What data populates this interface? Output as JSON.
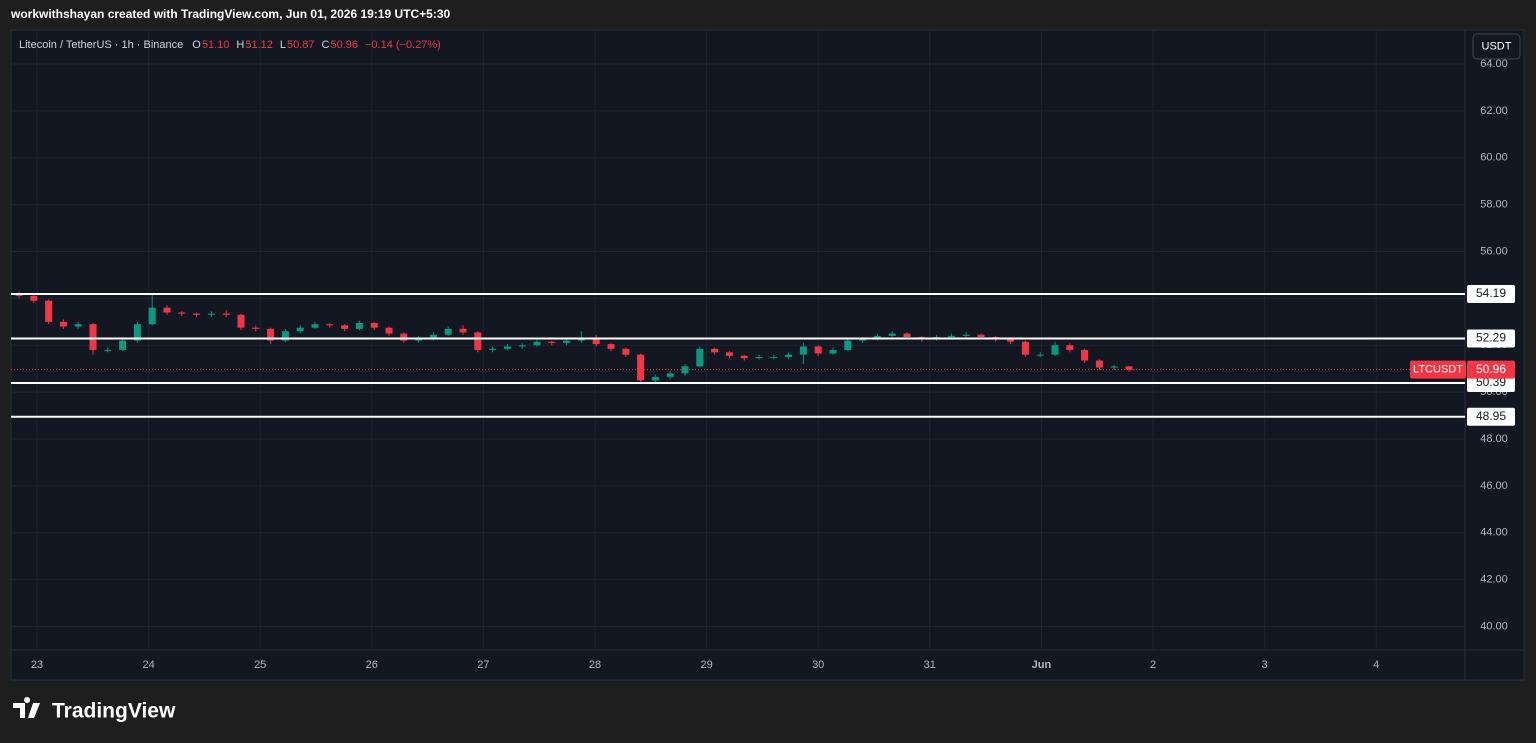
{
  "header": {
    "caption": "workwithshayan created with TradingView.com, Jun 01, 2026 19:19 UTC+5:30"
  },
  "chart_data": {
    "type": "candlestick",
    "legend": {
      "symbol": "Litecoin / TetherUS · 1h · Binance",
      "open_key": "O",
      "open": "51.10",
      "high_key": "H",
      "high": "51.12",
      "low_key": "L",
      "low": "50.87",
      "close_key": "C",
      "close": "50.96",
      "change": "−0.14 (−0.27%)"
    },
    "currency": "USDT",
    "up_color": "#089981",
    "down_color": "#f23645",
    "open": [
      54.2,
      54.1,
      53.9,
      53.0,
      52.8,
      52.9,
      51.8,
      51.8,
      52.2,
      52.9,
      53.6,
      53.4,
      53.35,
      53.3,
      53.35,
      53.3,
      52.75,
      52.7,
      52.2,
      52.6,
      52.75,
      52.9,
      52.85,
      52.7,
      52.95,
      52.75,
      52.5,
      52.2,
      52.3,
      52.45,
      52.7,
      52.55,
      51.8,
      51.85,
      51.95,
      52.0,
      52.15,
      52.1,
      52.2,
      52.3,
      52.05,
      51.85,
      51.6,
      50.5,
      50.65,
      50.8,
      51.1,
      51.85,
      51.7,
      51.55,
      51.45,
      51.5,
      51.5,
      51.6,
      51.95,
      51.65,
      51.8,
      52.2,
      52.25,
      52.4,
      52.5,
      52.35,
      52.25,
      52.35,
      52.4,
      52.45,
      52.35,
      52.25,
      52.15,
      51.6,
      51.6,
      52.0,
      51.8,
      51.35,
      51.05,
      51.1
    ],
    "high": [
      54.3,
      54.2,
      53.95,
      53.1,
      53.0,
      52.95,
      51.9,
      52.3,
      53.0,
      54.2,
      53.7,
      53.45,
      53.4,
      53.45,
      53.5,
      53.35,
      52.85,
      52.75,
      52.7,
      52.85,
      53.0,
      52.95,
      52.9,
      53.05,
      53.0,
      52.8,
      52.55,
      52.4,
      52.55,
      52.8,
      52.85,
      52.6,
      51.95,
      52.05,
      52.1,
      52.25,
      52.2,
      52.3,
      52.6,
      52.45,
      52.1,
      51.9,
      51.65,
      50.75,
      50.9,
      51.2,
      51.95,
      51.9,
      51.75,
      51.6,
      51.6,
      51.6,
      51.7,
      52.1,
      52.0,
      51.9,
      52.3,
      52.35,
      52.5,
      52.6,
      52.55,
      52.4,
      52.45,
      52.5,
      52.55,
      52.5,
      52.4,
      52.35,
      52.2,
      51.7,
      52.15,
      52.1,
      51.85,
      51.4,
      51.15,
      51.12
    ],
    "low": [
      54.0,
      53.8,
      52.9,
      52.7,
      52.7,
      51.6,
      51.7,
      51.75,
      52.1,
      52.85,
      53.3,
      53.25,
      53.2,
      53.2,
      53.2,
      52.65,
      52.6,
      52.05,
      52.15,
      52.5,
      52.7,
      52.75,
      52.6,
      52.65,
      52.65,
      52.4,
      52.1,
      52.1,
      52.2,
      52.4,
      52.45,
      51.7,
      51.7,
      51.8,
      51.85,
      51.95,
      52.0,
      52.0,
      52.1,
      51.95,
      51.75,
      51.5,
      50.35,
      50.4,
      50.55,
      50.7,
      51.05,
      51.6,
      51.45,
      51.35,
      51.4,
      51.4,
      51.4,
      51.2,
      51.55,
      51.6,
      51.75,
      52.1,
      52.2,
      52.35,
      52.25,
      52.15,
      52.2,
      52.3,
      52.35,
      52.25,
      52.15,
      52.05,
      51.5,
      51.5,
      51.55,
      51.7,
      51.25,
      50.95,
      50.95,
      50.87
    ],
    "close": [
      54.1,
      53.9,
      53.0,
      52.8,
      52.9,
      51.8,
      51.8,
      52.2,
      52.9,
      53.6,
      53.4,
      53.35,
      53.3,
      53.35,
      53.3,
      52.75,
      52.7,
      52.2,
      52.6,
      52.75,
      52.9,
      52.85,
      52.7,
      52.95,
      52.75,
      52.5,
      52.2,
      52.3,
      52.45,
      52.7,
      52.55,
      51.8,
      51.85,
      51.95,
      52.0,
      52.15,
      52.1,
      52.2,
      52.3,
      52.05,
      51.85,
      51.6,
      50.5,
      50.65,
      50.8,
      51.1,
      51.85,
      51.7,
      51.55,
      51.45,
      51.5,
      51.5,
      51.6,
      51.95,
      51.65,
      51.8,
      52.2,
      52.25,
      52.4,
      52.5,
      52.35,
      52.25,
      52.35,
      52.4,
      52.45,
      52.35,
      52.25,
      52.15,
      51.6,
      51.6,
      52.0,
      51.8,
      51.35,
      51.05,
      51.1,
      50.96
    ],
    "x_labels": [
      "23",
      "24",
      "25",
      "26",
      "27",
      "28",
      "29",
      "30",
      "31",
      "Jun",
      "2",
      "3",
      "4"
    ],
    "ylim": [
      39,
      65.45
    ],
    "yticks": [
      {
        "value": 40,
        "label": "40.00"
      },
      {
        "value": 42,
        "label": "42.00"
      },
      {
        "value": 44,
        "label": "44.00"
      },
      {
        "value": 46,
        "label": "46.00"
      },
      {
        "value": 48,
        "label": "48.00"
      },
      {
        "value": 50,
        "label": "50.00"
      },
      {
        "value": 52,
        "label": "52.00"
      },
      {
        "value": 54,
        "label": "54.00"
      },
      {
        "value": 56,
        "label": "56.00"
      },
      {
        "value": 58,
        "label": "58.00"
      },
      {
        "value": 60,
        "label": "60.00"
      },
      {
        "value": 62,
        "label": "62.00"
      },
      {
        "value": 64,
        "label": "64.00"
      }
    ],
    "grid": true,
    "levels": [
      {
        "value": 54.19,
        "label": "54.19"
      },
      {
        "value": 52.29,
        "label": "52.29"
      },
      {
        "value": 50.39,
        "label": "50.39"
      },
      {
        "value": 48.95,
        "label": "48.95"
      }
    ],
    "last_price": {
      "value": 50.96,
      "label": "50.96",
      "ticker": "LTCUSDT"
    }
  },
  "footer": {
    "brand": "TradingView"
  }
}
